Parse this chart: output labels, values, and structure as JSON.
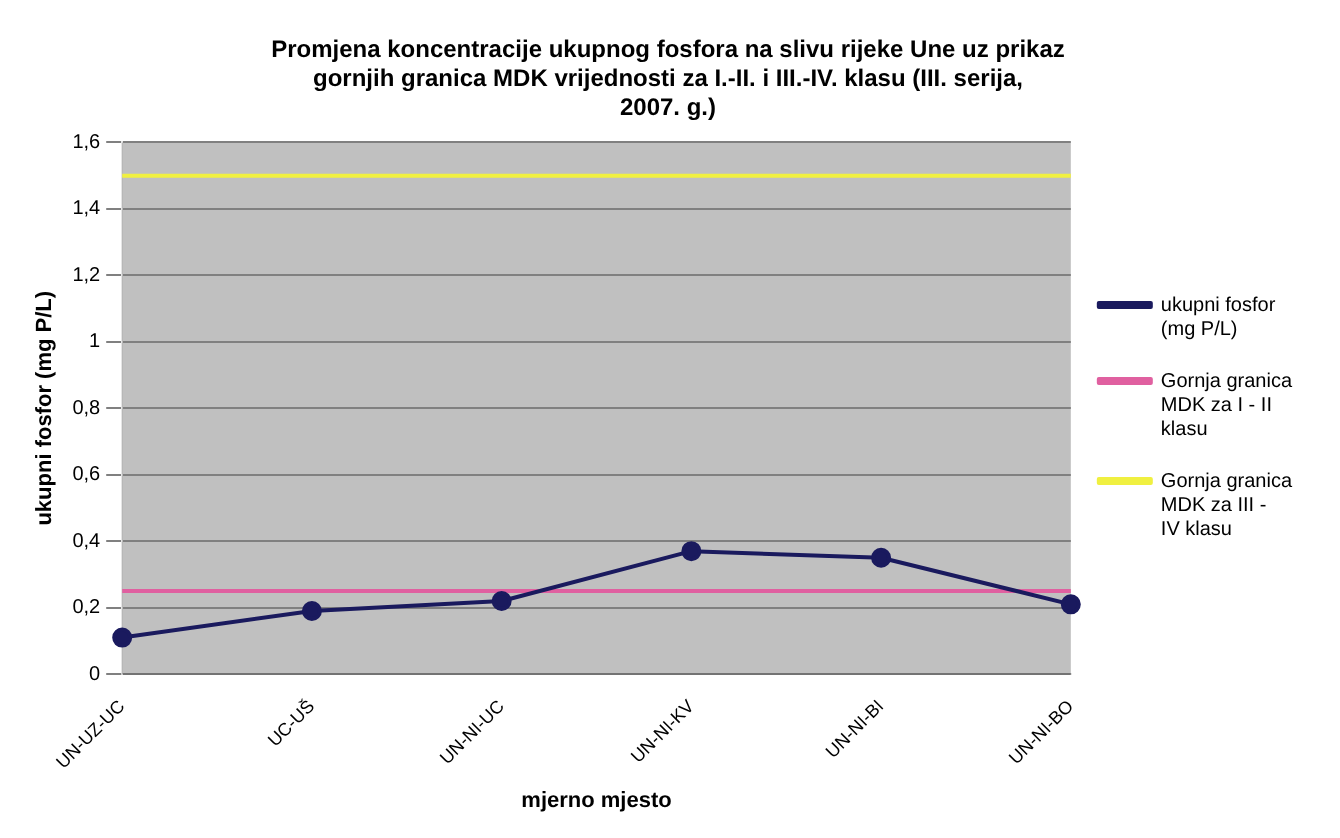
{
  "chart_data": {
    "type": "line",
    "title": "Promjena koncentracije ukupnog fosfora na slivu rijeke Une uz prikaz gornjih granica MDK vrijednosti za I.-II. i III.-IV. klasu (III. serija, 2007. g.)",
    "xlabel": "mjerno mjesto",
    "ylabel": "ukupni fosfor (mg P/L)",
    "categories": [
      "UN-UZ-UC",
      "UC-UŠ",
      "UN-NI-UC",
      "UN-NI-KV",
      "UN-NI-BI",
      "UN-NI-BO"
    ],
    "series": [
      {
        "name": "ukupni fosfor (mg P/L)",
        "color": "#1a1a5e",
        "marker": "circle",
        "values": [
          0.11,
          0.19,
          0.22,
          0.37,
          0.35,
          0.21
        ]
      },
      {
        "name": "Gornja granica MDK za I - II klasu",
        "color": "#e060a0",
        "marker": "none",
        "values": [
          0.25,
          0.25,
          0.25,
          0.25,
          0.25,
          0.25
        ]
      },
      {
        "name": "Gornja granica MDK za III - IV klasu",
        "color": "#f0f040",
        "marker": "none",
        "values": [
          1.5,
          1.5,
          1.5,
          1.5,
          1.5,
          1.5
        ]
      }
    ],
    "ylim": [
      0,
      1.6
    ],
    "yticks": [
      0,
      {
        "value": 0.2,
        "label": "0,2"
      },
      {
        "value": 0.4,
        "label": "0,4"
      },
      {
        "value": 0.6,
        "label": "0,6"
      },
      {
        "value": 0.8,
        "label": "0,8"
      },
      1,
      {
        "value": 1.2,
        "label": "1,2"
      },
      {
        "value": 1.4,
        "label": "1,4"
      },
      {
        "value": 1.6,
        "label": "1,6"
      }
    ],
    "grid": "y",
    "legend": "right"
  }
}
